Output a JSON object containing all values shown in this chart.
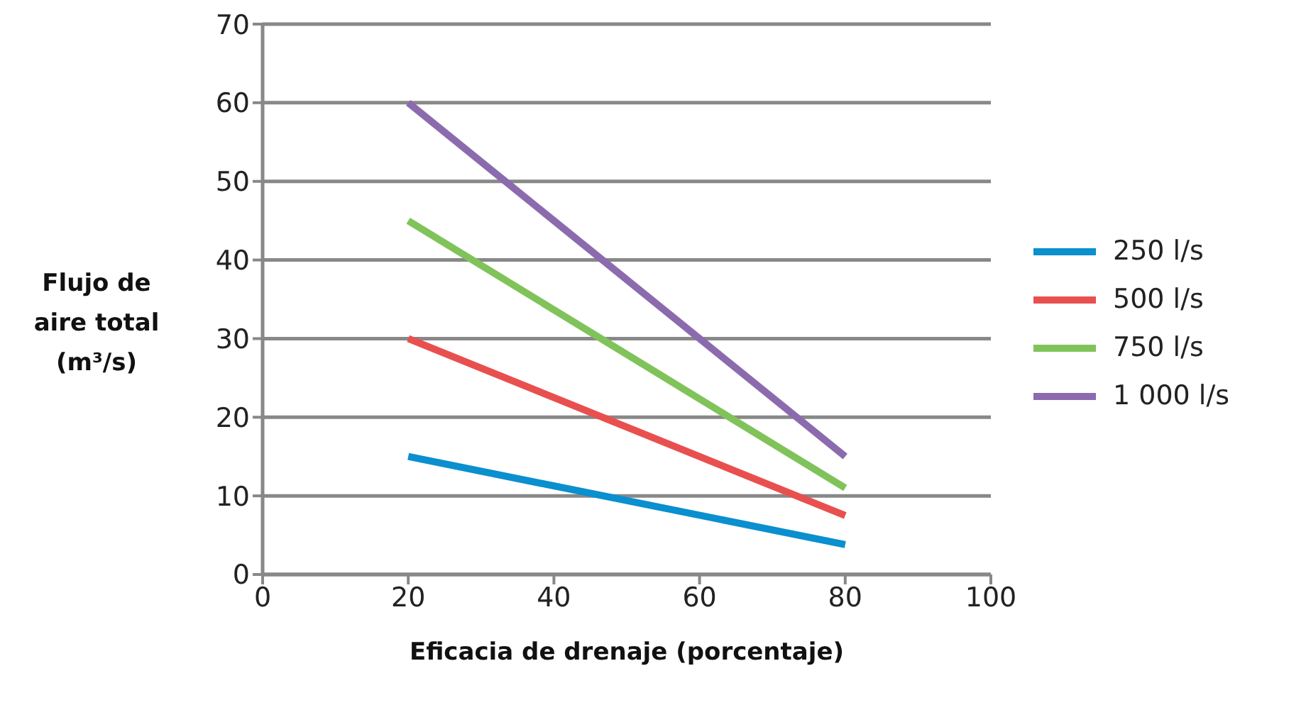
{
  "chart_data": {
    "type": "line",
    "xlabel": "Eficacia de drenaje (porcentaje)",
    "ylabel": "Flujo de aire total (m³/s)",
    "x": [
      20,
      80
    ],
    "series": [
      {
        "name": "250 l/s",
        "color": "#0a8fcf",
        "values": [
          15,
          3.8
        ]
      },
      {
        "name": "500 l/s",
        "color": "#e8504f",
        "values": [
          30,
          7.5
        ]
      },
      {
        "name": "750 l/s",
        "color": "#80c35a",
        "values": [
          45,
          11
        ]
      },
      {
        "name": "1 000 l/s",
        "color": "#8b6bad",
        "values": [
          60,
          15
        ]
      }
    ],
    "xlim": [
      0,
      100
    ],
    "xticks": [
      0,
      20,
      40,
      60,
      80,
      100
    ],
    "ylim": [
      0,
      70
    ],
    "yticks": [
      0,
      10,
      20,
      30,
      40,
      50,
      60,
      70
    ],
    "grid": "y",
    "legend": "right",
    "marker": "none",
    "line_style": "solid"
  }
}
